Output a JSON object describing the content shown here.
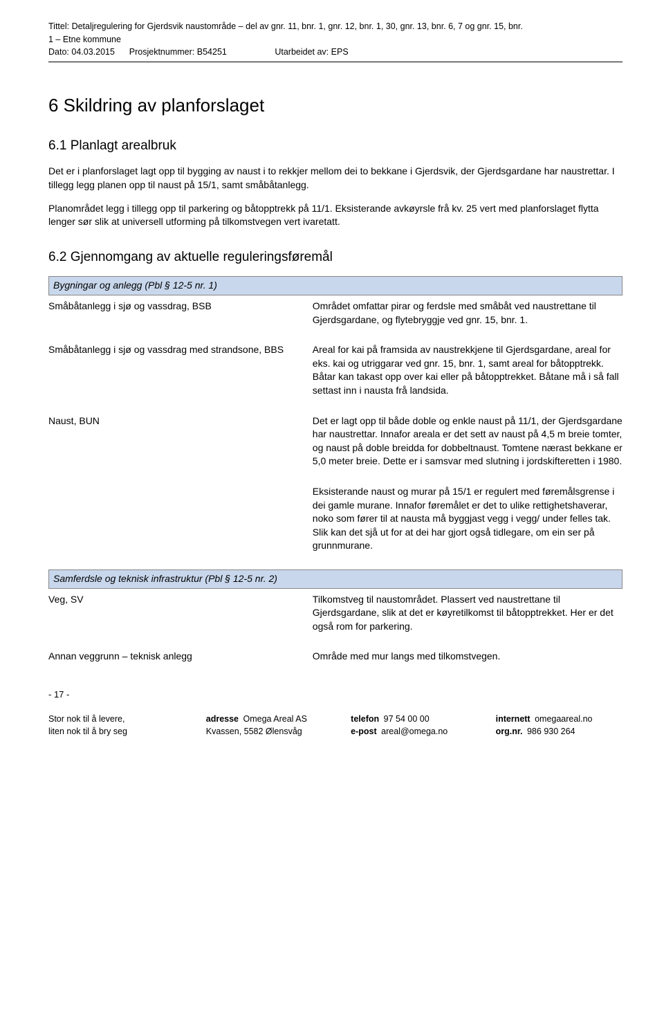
{
  "header": {
    "title_line1": "Tittel: Detaljregulering for Gjerdsvik naustområde – del av gnr. 11, bnr. 1, gnr. 12, bnr. 1, 30, gnr. 13, bnr. 6, 7 og gnr. 15, bnr.",
    "title_line2": "1 – Etne kommune",
    "date_label": "Dato:",
    "date_value": "04.03.2015",
    "project_label": "Prosjektnummer:",
    "project_value": "B54251",
    "prepared_label": "Utarbeidet av:",
    "prepared_value": "EPS"
  },
  "h1": "6 Skildring av planforslaget",
  "s61": {
    "heading": "6.1 Planlagt arealbruk",
    "p1": "Det er i planforslaget lagt opp til bygging av naust i to rekkjer mellom dei to bekkane i Gjerdsvik, der Gjerdsgardane har naustrettar. I tillegg legg planen opp til naust på 15/1, samt småbåtanlegg.",
    "p2": "Planområdet legg i tillegg opp til parkering og båtopptrekk på 11/1. Eksisterande avkøyrsle frå kv. 25 vert med planforslaget flytta lenger sør slik at universell utforming på tilkomstvegen vert ivaretatt."
  },
  "s62": {
    "heading": "6.2 Gjennomgang av aktuelle reguleringsføremål",
    "sec1_header": "Bygningar og anlegg (Pbl § 12-5 nr. 1)",
    "rows": [
      {
        "left": "Småbåtanlegg i sjø og vassdrag, BSB",
        "right": "Området omfattar pirar og ferdsle med småbåt ved naustrettane til Gjerdsgardane, og flytebryggje ved gnr. 15, bnr. 1."
      },
      {
        "left": "Småbåtanlegg i sjø og vassdrag med strandsone, BBS",
        "right": "Areal for kai på framsida av naustrekkjene til Gjerdsgardane, areal for eks. kai og utriggarar ved gnr. 15, bnr. 1, samt areal for båtopptrekk. Båtar kan takast opp over kai eller på båtopptrekket. Båtane må i så fall settast inn i nausta frå landsida."
      },
      {
        "left": "Naust, BUN",
        "right": "Det er lagt opp til både doble og enkle naust på 11/1, der Gjerdsgardane har naustrettar. Innafor areala er det sett av naust på 4,5 m breie tomter, og naust på doble breidda for dobbeltnaust. Tomtene nærast bekkane er 5,0 meter breie. Dette er i samsvar med slutning i jordskifteretten i 1980."
      }
    ],
    "extra_right": "Eksisterande naust og murar på 15/1 er regulert med føremålsgrense i dei gamle murane.  Innafor føremålet er det to ulike rettighetshaverar, noko som fører til at nausta må byggjast vegg i vegg/ under felles tak. Slik kan det sjå ut for at dei har gjort også tidlegare, om ein ser på grunnmurane.",
    "sec2_header": "Samferdsle og teknisk infrastruktur (Pbl § 12-5 nr. 2)",
    "rows2": [
      {
        "left": "Veg, SV",
        "right": "Tilkomstveg til naustområdet. Plassert ved naustrettane til Gjerdsgardane, slik at det er køyretilkomst til båtopptrekket. Her er det også rom for parkering."
      },
      {
        "left": "Annan veggrunn – teknisk anlegg",
        "right": "Område med mur langs med tilkomstvegen."
      }
    ]
  },
  "page_num": "- 17 -",
  "footer": {
    "col1_l1": "Stor nok til å levere,",
    "col1_l2": "liten nok til å bry seg",
    "col2_label": "adresse",
    "col2_l1": "Omega Areal AS",
    "col2_l2": "Kvassen, 5582 Ølensvåg",
    "col3_label1": "telefon",
    "col3_v1": "97 54 00 00",
    "col3_label2": "e-post",
    "col3_v2": "areal@omega.no",
    "col4_label1": "internett",
    "col4_v1": "omegaareal.no",
    "col4_label2": "org.nr.",
    "col4_v2": "986 930 264"
  }
}
